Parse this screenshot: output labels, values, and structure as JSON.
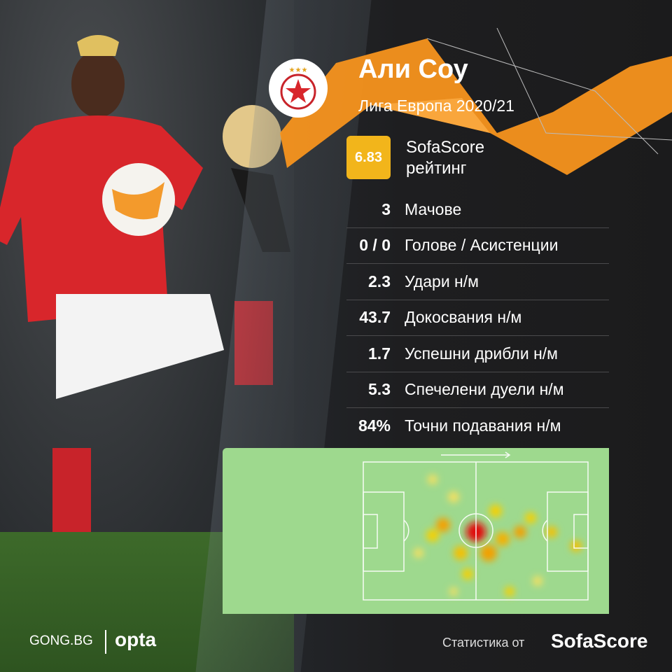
{
  "player": {
    "name": "Али Соу",
    "competition": "Лига Европа 2020/21",
    "club_badge": "cska-sofia-badge"
  },
  "rating": {
    "value": "6.83",
    "label_line1": "SofaScore",
    "label_line2": "рейтинг",
    "color": "#f2b51b"
  },
  "stats": [
    {
      "value": "3",
      "label": "Мачове"
    },
    {
      "value": "0 / 0",
      "label": "Голове / Асистенции"
    },
    {
      "value": "2.3",
      "label": "Удари н/м"
    },
    {
      "value": "43.7",
      "label": "Докосвания н/м"
    },
    {
      "value": "1.7",
      "label": "Успешни дрибли н/м"
    },
    {
      "value": "5.3",
      "label": "Спечелени дуели н/м"
    },
    {
      "value": "84%",
      "label": "Точни подавания н/м"
    }
  ],
  "heatmap": {
    "attack_direction": "right",
    "pitch_color": "#9ed98e"
  },
  "footer": {
    "gong": "GONG.BG",
    "opta": "opta",
    "stats_from": "Статистика от",
    "sofascore": "SofaScore"
  },
  "colors": {
    "accent": "#f7941d",
    "background": "#1c1c1e"
  }
}
